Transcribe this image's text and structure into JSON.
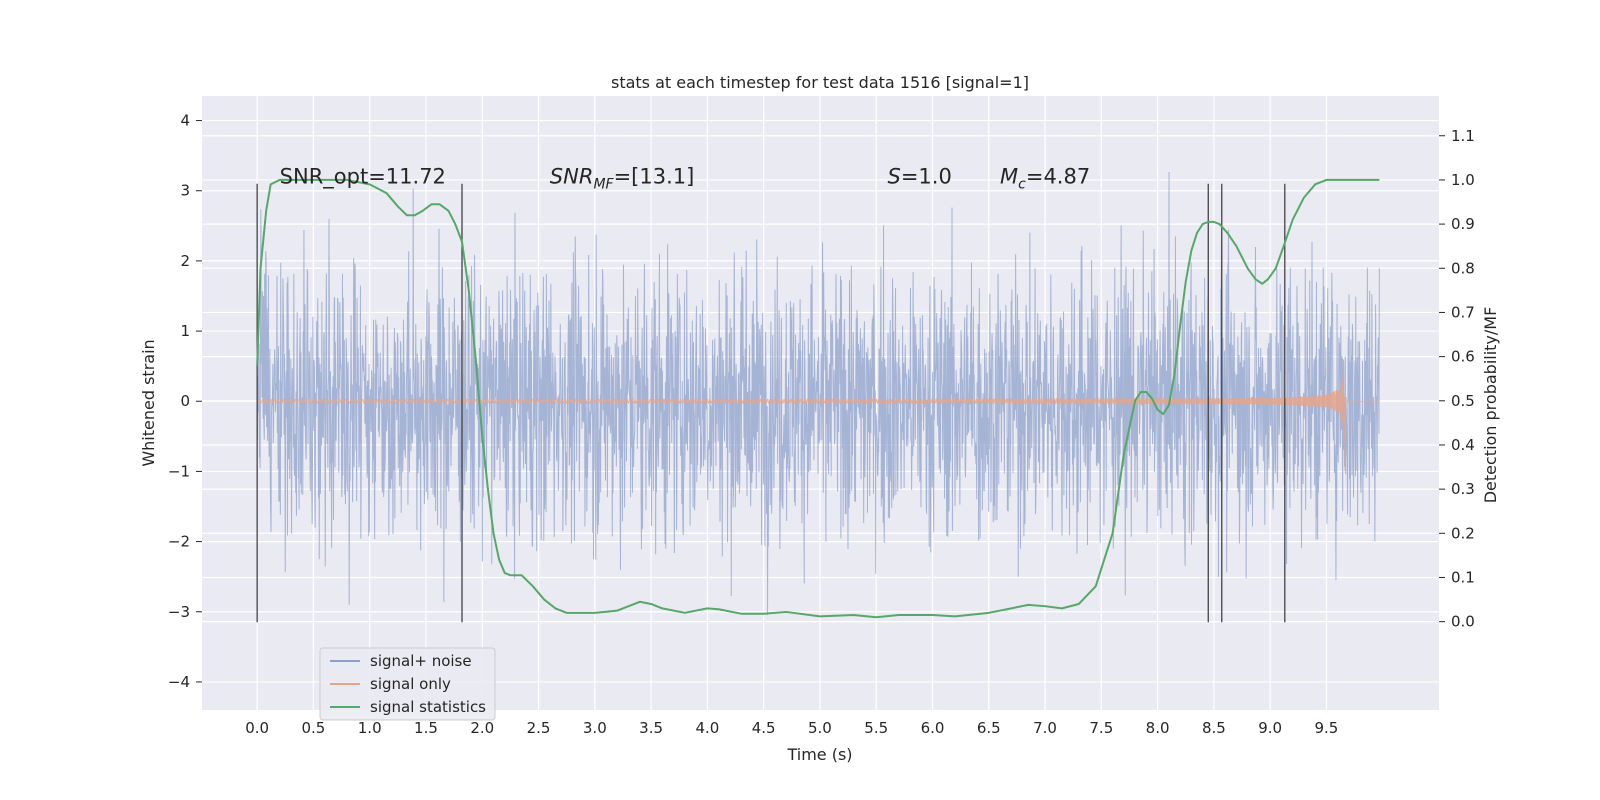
{
  "chart_data": {
    "type": "line",
    "title": "stats at each timestep for test data 1516 [signal=1]",
    "xlabel": "Time (s)",
    "ylabel_left": "Whitened strain",
    "ylabel_right": "Detection probability/MF",
    "xlim": [
      -0.49,
      10.5
    ],
    "ylim_left": [
      -4.4,
      4.35
    ],
    "ylim_right": [
      -0.2,
      1.19
    ],
    "grid": true,
    "x_ticks": [
      "0.0",
      "0.5",
      "1.0",
      "1.5",
      "2.0",
      "2.5",
      "3.0",
      "3.5",
      "4.0",
      "4.5",
      "5.0",
      "5.5",
      "6.0",
      "6.5",
      "7.0",
      "7.5",
      "8.0",
      "8.5",
      "9.0",
      "9.5"
    ],
    "y_ticks_left": [
      "−4",
      "−3",
      "−2",
      "−1",
      "0",
      "1",
      "2",
      "3",
      "4"
    ],
    "y_ticks_right": [
      "0.0",
      "0.1",
      "0.2",
      "0.3",
      "0.4",
      "0.5",
      "0.6",
      "0.7",
      "0.8",
      "0.9",
      "1.0",
      "1.1"
    ],
    "annotations": [
      {
        "pre": "SNR_opt=11.72",
        "sub": "",
        "post": "",
        "x": 0.2,
        "y": 3.1,
        "italic": false
      },
      {
        "pre": "SNR",
        "sub": "MF",
        "post": "=[13.1]",
        "x": 2.6,
        "y": 3.1,
        "italic": true
      },
      {
        "pre": "S",
        "sub": "",
        "post": "=1.0",
        "x": 5.6,
        "y": 3.1,
        "italic": true
      },
      {
        "pre": "M",
        "sub": "c",
        "post": "=4.87",
        "x": 6.6,
        "y": 3.1,
        "italic": true
      }
    ],
    "vertical_lines": [
      0.0,
      1.82,
      8.45,
      8.57,
      9.13
    ],
    "vertical_line_range": [
      -3.15,
      3.1
    ],
    "noise_x_range": [
      0.0,
      9.97
    ],
    "chirp": {
      "t_merge": 9.67,
      "amplitude_start": 0.02,
      "amplitude_peak": 1.0
    },
    "series": [
      {
        "name": "signal+ noise",
        "color": "#8da0cb",
        "kind": "noisy strain, axis left"
      },
      {
        "name": "signal only",
        "color": "#e5a58a",
        "kind": "chirp, axis left"
      },
      {
        "name": "signal statistics",
        "color": "#55a868",
        "kind": "probability, axis right",
        "x": [
          0.0,
          0.03,
          0.08,
          0.12,
          0.2,
          0.3,
          0.5,
          0.8,
          1.0,
          1.15,
          1.25,
          1.33,
          1.4,
          1.47,
          1.55,
          1.62,
          1.7,
          1.76,
          1.82,
          1.88,
          1.94,
          2.0,
          2.05,
          2.1,
          2.15,
          2.2,
          2.25,
          2.3,
          2.35,
          2.45,
          2.55,
          2.65,
          2.75,
          2.85,
          3.0,
          3.2,
          3.4,
          3.5,
          3.6,
          3.8,
          4.0,
          4.1,
          4.3,
          4.5,
          4.7,
          5.0,
          5.3,
          5.5,
          5.7,
          6.0,
          6.2,
          6.5,
          6.7,
          6.85,
          7.0,
          7.15,
          7.3,
          7.45,
          7.6,
          7.7,
          7.8,
          7.85,
          7.9,
          7.95,
          8.0,
          8.05,
          8.1,
          8.15,
          8.2,
          8.25,
          8.3,
          8.35,
          8.4,
          8.45,
          8.5,
          8.55,
          8.62,
          8.7,
          8.8,
          8.87,
          8.93,
          8.98,
          9.05,
          9.12,
          9.2,
          9.3,
          9.4,
          9.5,
          9.6,
          9.97
        ],
        "values": [
          0.58,
          0.8,
          0.93,
          0.99,
          1.0,
          1.0,
          1.0,
          1.0,
          0.99,
          0.97,
          0.94,
          0.92,
          0.92,
          0.93,
          0.945,
          0.945,
          0.93,
          0.9,
          0.86,
          0.75,
          0.6,
          0.42,
          0.3,
          0.2,
          0.14,
          0.11,
          0.105,
          0.105,
          0.105,
          0.08,
          0.05,
          0.03,
          0.02,
          0.02,
          0.02,
          0.025,
          0.045,
          0.04,
          0.03,
          0.02,
          0.03,
          0.028,
          0.018,
          0.018,
          0.022,
          0.012,
          0.015,
          0.01,
          0.015,
          0.015,
          0.012,
          0.02,
          0.03,
          0.038,
          0.035,
          0.03,
          0.04,
          0.08,
          0.2,
          0.38,
          0.5,
          0.52,
          0.52,
          0.505,
          0.48,
          0.47,
          0.49,
          0.56,
          0.67,
          0.77,
          0.84,
          0.88,
          0.9,
          0.905,
          0.905,
          0.9,
          0.88,
          0.85,
          0.8,
          0.775,
          0.765,
          0.775,
          0.8,
          0.85,
          0.91,
          0.96,
          0.99,
          1.0,
          1.0,
          1.0
        ]
      }
    ]
  }
}
